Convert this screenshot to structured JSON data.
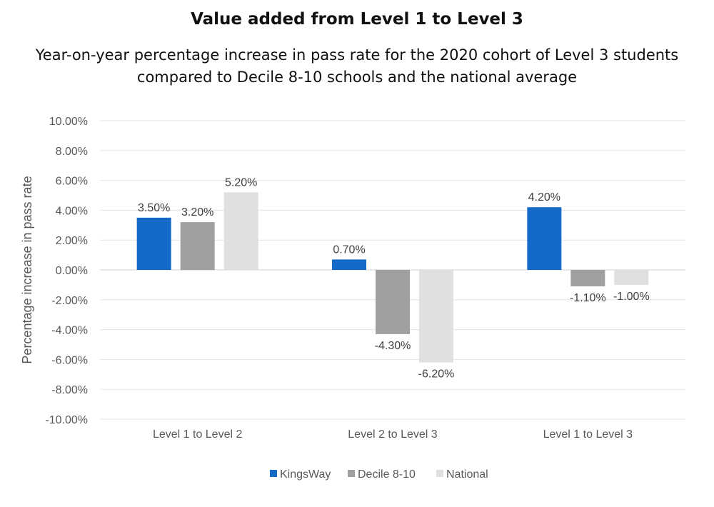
{
  "chart_data": {
    "type": "bar",
    "title": "Value added from Level 1 to Level 3",
    "subtitle_lines": [
      "Year-on-year percentage increase in pass rate for the 2020 cohort of Level 3 students",
      "compared to Decile 8-10 schools and the national average"
    ],
    "xlabel": "",
    "ylabel": "Percentage increase in pass rate",
    "ylim": [
      -10,
      10
    ],
    "ytick_step": 2,
    "grid": true,
    "legend_position": "bottom",
    "categories": [
      "Level 1 to Level 2",
      "Level 2 to Level 3",
      "Level 1 to Level 3"
    ],
    "series": [
      {
        "name": "KingsWay",
        "color": "#1469c9",
        "values": [
          3.5,
          0.7,
          4.2
        ]
      },
      {
        "name": "Decile 8-10",
        "color": "#a0a0a0",
        "values": [
          3.2,
          -4.3,
          -1.1
        ]
      },
      {
        "name": "National",
        "color": "#e0e0e0",
        "values": [
          5.2,
          -6.2,
          -1.0
        ]
      }
    ]
  }
}
